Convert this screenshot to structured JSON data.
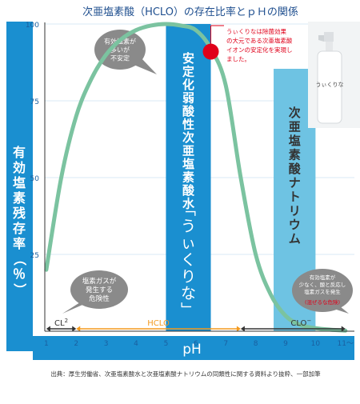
{
  "title": "次亜塩素酸（HCLO）の存在比率とｐＨの関係",
  "y_axis_label": "有効塩素残存率（％）",
  "x_axis_label": "pH",
  "x_tick_suffix": "〜",
  "band_acid": {
    "label": "安定化弱酸性次亜塩素酸水",
    "product": "「うぃくりな」",
    "color": "#1a8fd0"
  },
  "band_alkaline": {
    "label": "次亜塩素酸ナトリウム",
    "color": "#6ec3e3"
  },
  "annotation_top": {
    "lines": [
      "うぃくりなは除菌効果",
      "の大元である次亜塩素酸",
      "イオンの安定化を実現し",
      "ました。"
    ],
    "color": "#e0001a"
  },
  "bubble_unstable": {
    "lines": [
      "有効塩素が",
      "多いが",
      "不安定"
    ]
  },
  "bubble_gas": {
    "lines": [
      "塩素ガスが",
      "発生する",
      "危険性"
    ]
  },
  "bubble_mix": {
    "lines": [
      "有効塩素が",
      "少なく、酸と反応し",
      "塩素ガスを発生"
    ],
    "warning": "(混ぜるな危険)",
    "warning_color": "#e0001a"
  },
  "species": [
    {
      "label": "CL",
      "superscript": "2",
      "from_ph": 1,
      "to_ph": 2,
      "color": "#333333"
    },
    {
      "label": "HCLO",
      "from_ph": 2,
      "to_ph": 7.5,
      "color": "#f39a1e"
    },
    {
      "label": "CLO",
      "superscript": "−",
      "from_ph": 7.5,
      "to_ph": 11,
      "color": "#333333"
    }
  ],
  "source": "出典：厚生労働省、次亜塩素酸水と次亜塩素酸ナトリウムの同類性に関する資料より抜粋、一部加筆",
  "chart_data": {
    "type": "line",
    "xlabel": "pH",
    "ylabel": "有効塩素残存率（％）",
    "xlim": [
      0.95,
      11.3
    ],
    "ylim": [
      0,
      100
    ],
    "x_ticks": [
      1,
      2,
      3,
      4,
      5,
      6,
      7,
      8,
      9,
      10,
      11
    ],
    "y_ticks": [
      25,
      50,
      75,
      100
    ],
    "highlight_ph": [
      5,
      6.5
    ],
    "highlight_alk_ph": [
      8.6,
      10
    ],
    "marker": {
      "x": 6.5,
      "y": 91
    },
    "series": [
      {
        "color": "#7bc3a0",
        "x": [
          1,
          1.5,
          2,
          2.5,
          3,
          3.5,
          4,
          4.5,
          5,
          5.5,
          6,
          6.5,
          7,
          7.5,
          8,
          8.5,
          9,
          9.5,
          10,
          10.5,
          11
        ],
        "y": [
          20,
          50,
          70,
          82,
          90,
          95,
          98,
          99.5,
          100,
          99.5,
          98,
          92,
          80,
          50,
          25,
          12,
          5,
          2,
          1,
          0.5,
          0.2
        ]
      }
    ]
  }
}
